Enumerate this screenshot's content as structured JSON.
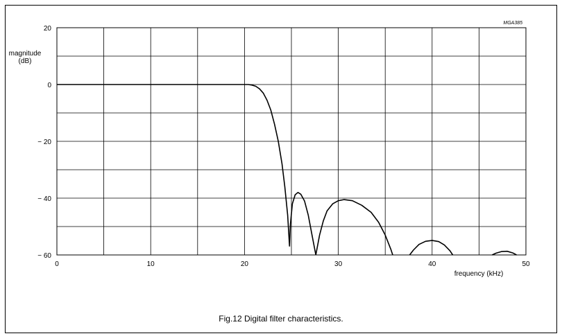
{
  "figure": {
    "code": "MGA385",
    "caption": "Fig.12  Digital filter characteristics."
  },
  "chart_data": {
    "type": "line",
    "xlabel": "frequency  (kHz)",
    "ylabel_line1": "magnitude",
    "ylabel_line2": "(dB)",
    "xlim": [
      0,
      50
    ],
    "ylim": [
      -60,
      20
    ],
    "x_ticks": [
      0,
      10,
      20,
      30,
      40,
      50
    ],
    "x_tick_labels": [
      "0",
      "10",
      "20",
      "30",
      "40",
      "50"
    ],
    "y_ticks": [
      20,
      0,
      -20,
      -40,
      -60
    ],
    "y_tick_labels": [
      "20",
      "0",
      "− 20",
      "− 40",
      "− 60"
    ],
    "x_grid_step": 5,
    "y_grid_step": 10,
    "grid": true,
    "series": [
      {
        "segments": [
          [
            [
              0,
              0
            ],
            [
              20,
              0
            ],
            [
              20.4,
              0
            ],
            [
              20.8,
              -0.2
            ],
            [
              21.2,
              -0.6
            ],
            [
              21.6,
              -1.5
            ],
            [
              22,
              -3
            ],
            [
              22.4,
              -5.5
            ],
            [
              22.8,
              -9
            ],
            [
              23.2,
              -14
            ],
            [
              23.6,
              -20
            ],
            [
              24,
              -28
            ],
            [
              24.3,
              -36
            ],
            [
              24.6,
              -46
            ],
            [
              24.8,
              -57
            ]
          ],
          [
            [
              24.8,
              -57
            ],
            [
              24.9,
              -49
            ],
            [
              25.1,
              -42
            ],
            [
              25.4,
              -38.8
            ],
            [
              25.7,
              -38
            ],
            [
              26,
              -38.6
            ],
            [
              26.4,
              -41
            ],
            [
              26.8,
              -46
            ],
            [
              27.2,
              -53
            ],
            [
              27.6,
              -60
            ]
          ],
          [
            [
              27.6,
              -60
            ],
            [
              28,
              -53
            ],
            [
              28.4,
              -48
            ],
            [
              28.8,
              -44.5
            ],
            [
              29.4,
              -42
            ],
            [
              30,
              -40.9
            ],
            [
              30.6,
              -40.5
            ],
            [
              31.5,
              -40.9
            ],
            [
              32.5,
              -42.5
            ],
            [
              33.5,
              -45
            ],
            [
              34.3,
              -48.5
            ],
            [
              35,
              -53
            ],
            [
              35.6,
              -58
            ],
            [
              35.8,
              -60
            ]
          ],
          [
            [
              37.6,
              -60
            ],
            [
              38,
              -58.3
            ],
            [
              38.6,
              -56.3
            ],
            [
              39.3,
              -55.2
            ],
            [
              40,
              -54.9
            ],
            [
              40.7,
              -55.3
            ],
            [
              41.3,
              -56.5
            ],
            [
              41.9,
              -58.5
            ],
            [
              42.2,
              -60
            ]
          ],
          [
            [
              46.4,
              -60
            ],
            [
              46.8,
              -59.4
            ],
            [
              47.4,
              -58.8
            ],
            [
              48,
              -58.7
            ],
            [
              48.6,
              -59.3
            ],
            [
              49,
              -60
            ]
          ]
        ]
      }
    ]
  }
}
